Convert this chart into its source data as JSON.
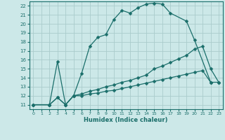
{
  "xlabel": "Humidex (Indice chaleur)",
  "bg_color": "#cce8e8",
  "grid_color": "#aacccc",
  "line_color": "#1a6e6a",
  "xlim": [
    -0.5,
    23.5
  ],
  "ylim": [
    10.5,
    22.5
  ],
  "xticks": [
    0,
    1,
    2,
    3,
    4,
    5,
    6,
    7,
    8,
    9,
    10,
    11,
    12,
    13,
    14,
    15,
    16,
    17,
    18,
    19,
    20,
    21,
    22,
    23
  ],
  "yticks": [
    11,
    12,
    13,
    14,
    15,
    16,
    17,
    18,
    19,
    20,
    21,
    22
  ],
  "line1_x": [
    0,
    2,
    3,
    4,
    5,
    6,
    7,
    8,
    9,
    10,
    11,
    12,
    13,
    14,
    15,
    16,
    17,
    19,
    20,
    22
  ],
  "line1_y": [
    11,
    11,
    15.8,
    11,
    12,
    14.5,
    17.5,
    18.5,
    18.8,
    20.5,
    21.5,
    21.2,
    21.8,
    22.2,
    22.3,
    22.2,
    21.2,
    20.3,
    18.2,
    13.5
  ],
  "line2_x": [
    0,
    2,
    3,
    4,
    5,
    6,
    7,
    8,
    9,
    10,
    11,
    12,
    13,
    14,
    15,
    16,
    17,
    18,
    19,
    20,
    21,
    22,
    23
  ],
  "line2_y": [
    11,
    11,
    11.8,
    11,
    12.0,
    12.2,
    12.5,
    12.7,
    13.0,
    13.2,
    13.5,
    13.7,
    14.0,
    14.3,
    15.0,
    15.3,
    15.7,
    16.1,
    16.5,
    17.2,
    17.5,
    15.0,
    13.5
  ],
  "line3_x": [
    0,
    2,
    3,
    4,
    5,
    6,
    7,
    8,
    9,
    10,
    11,
    12,
    13,
    14,
    15,
    16,
    17,
    18,
    19,
    20,
    21,
    22,
    23
  ],
  "line3_y": [
    11,
    11,
    11.8,
    11,
    12.0,
    12.0,
    12.2,
    12.3,
    12.5,
    12.6,
    12.8,
    13.0,
    13.2,
    13.4,
    13.6,
    13.8,
    14.0,
    14.2,
    14.4,
    14.6,
    14.8,
    13.5,
    13.5
  ]
}
